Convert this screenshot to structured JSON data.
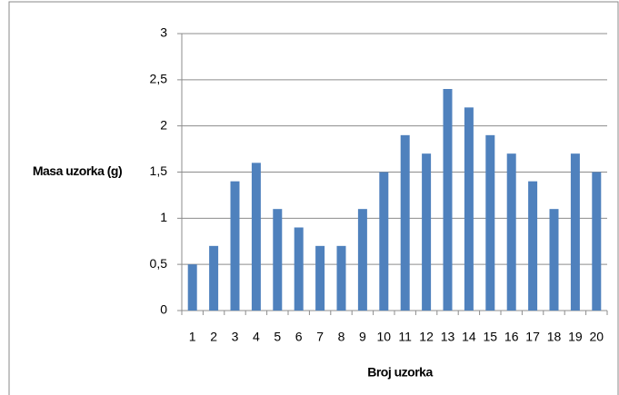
{
  "chart_data": {
    "type": "bar",
    "x_label": "Broj uzorka",
    "y_label": "Masa uzorka (g)",
    "categories": [
      "1",
      "2",
      "3",
      "4",
      "5",
      "6",
      "7",
      "8",
      "9",
      "10",
      "11",
      "12",
      "13",
      "14",
      "15",
      "16",
      "17",
      "18",
      "19",
      "20"
    ],
    "values": [
      0.5,
      0.7,
      1.4,
      1.6,
      1.1,
      0.9,
      0.7,
      0.7,
      1.1,
      1.5,
      1.9,
      1.7,
      2.4,
      2.2,
      1.9,
      1.7,
      1.4,
      1.1,
      1.7,
      1.5
    ],
    "color": "#4f81bd",
    "ylim": [
      0,
      3
    ],
    "yticks": [
      0,
      {
        "value": 0.5,
        "label": "0,5"
      },
      1,
      {
        "value": 1.5,
        "label": "1,5"
      },
      2,
      {
        "value": 2.5,
        "label": "2,5"
      },
      3
    ],
    "grid": true
  }
}
